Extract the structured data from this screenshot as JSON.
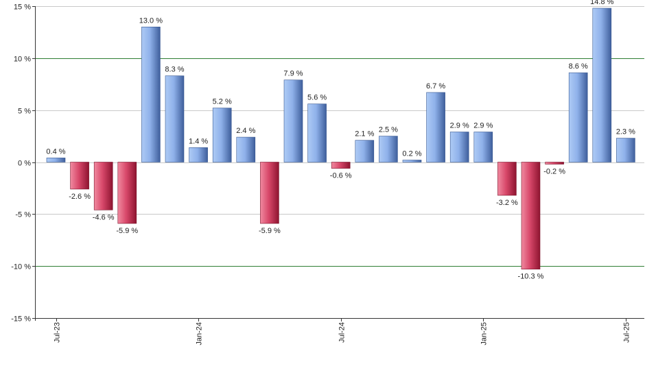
{
  "chart_data": {
    "type": "bar",
    "title": "",
    "xlabel": "",
    "ylabel": "",
    "ylim": [
      -15,
      15
    ],
    "yticks": [
      15,
      10,
      5,
      0,
      -5,
      -10,
      -15
    ],
    "ytick_labels": [
      "15 %",
      "10 %",
      "5 %",
      "0 %",
      "-5 %",
      "-10 %",
      "-15 %"
    ],
    "xtick_labels": [
      "Jul-23",
      "Jan-24",
      "Jul-24",
      "Jan-25",
      "Jul-25"
    ],
    "xtick_bar_index": [
      0,
      6,
      12,
      18,
      24
    ],
    "values": [
      0.4,
      -2.6,
      -4.6,
      -5.9,
      13.0,
      8.3,
      1.4,
      5.2,
      2.4,
      -5.9,
      7.9,
      5.6,
      -0.6,
      2.1,
      2.5,
      0.2,
      6.7,
      2.9,
      2.9,
      -3.2,
      -10.3,
      -0.2,
      8.6,
      14.8,
      2.3
    ],
    "labels": [
      "0.4 %",
      "-2.6 %",
      "-4.6 %",
      "-5.9 %",
      "13.0 %",
      "8.3 %",
      "1.4 %",
      "5.2 %",
      "2.4 %",
      "-5.9 %",
      "7.9 %",
      "5.6 %",
      "-0.6 %",
      "2.1 %",
      "2.5 %",
      "0.2 %",
      "6.7 %",
      "2.9 %",
      "2.9 %",
      "-3.2 %",
      "-10.3 %",
      "-0.2 %",
      "8.6 %",
      "14.8 %",
      "2.3 %"
    ],
    "highlight_lines": [
      10,
      -10
    ],
    "colors": {
      "positive_light": "#aecbf5",
      "positive_dark": "#3f5f9c",
      "negative_light": "#f08aa0",
      "negative_dark": "#8e1430",
      "grid": "#c8c8c8",
      "highlight": "#2e7d32",
      "axis": "#333333"
    }
  }
}
